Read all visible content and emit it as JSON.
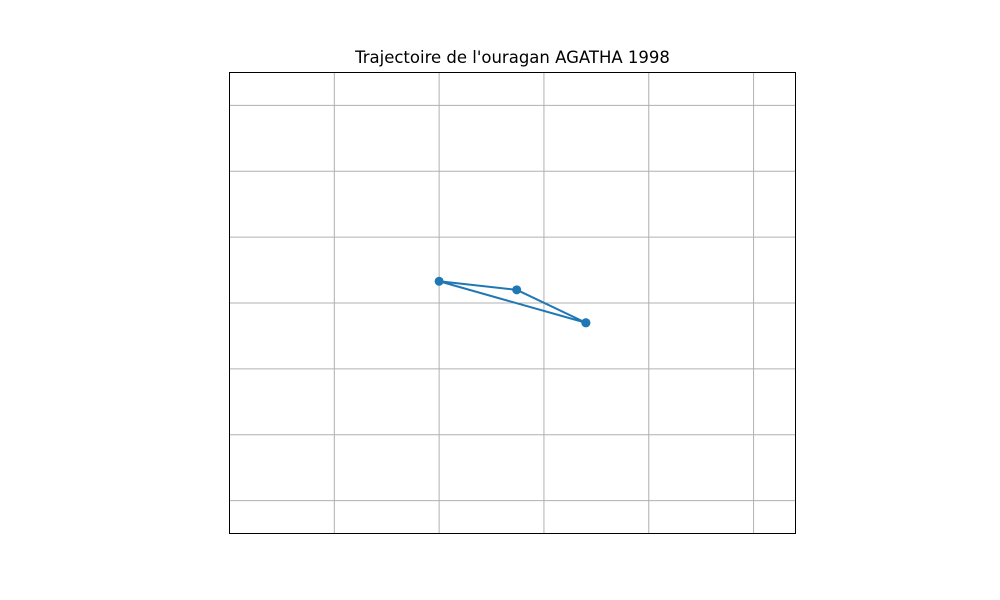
{
  "chart_data": {
    "type": "line",
    "title": "Trajectoire de l'ouragan AGATHA 1998",
    "xlabel": "",
    "ylabel": "",
    "grid": true,
    "xlim": [
      -3,
      2.4
    ],
    "ylim": [
      -3.5,
      3.5
    ],
    "x_gridlines": [
      -2,
      -1,
      0,
      1,
      2
    ],
    "y_gridlines": [
      -3,
      -2,
      -1,
      0,
      1,
      2,
      3
    ],
    "series": [
      {
        "name": "AGATHA 1998",
        "x": [
          0.4,
          -0.26,
          -1,
          0.4
        ],
        "y": [
          -0.3,
          0.2,
          0.33,
          -0.3
        ]
      }
    ]
  },
  "colors": {
    "line": "#1f77b4",
    "grid": "#b0b0b0",
    "frame": "#000000"
  }
}
